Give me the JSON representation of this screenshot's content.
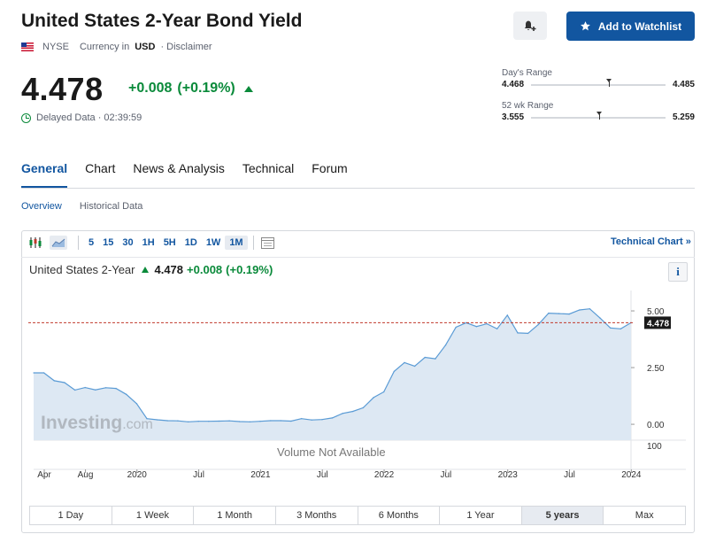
{
  "header": {
    "title": "United States 2-Year Bond Yield",
    "exchange": "NYSE",
    "currency_prefix": "Currency in",
    "currency": "USD",
    "disclaimer": "· Disclaimer",
    "watchlist_label": "Add to Watchlist"
  },
  "quote": {
    "price": "4.478",
    "change": "+0.008",
    "change_pct": "(+0.19%)",
    "delayed": "Delayed Data · 02:39:59",
    "up_color": "#0a8a3a"
  },
  "ranges": {
    "day": {
      "label": "Day's Range",
      "low": "4.468",
      "high": "4.485",
      "position": 0.56
    },
    "week52": {
      "label": "52 wk Range",
      "low": "3.555",
      "high": "5.259",
      "position": 0.49
    }
  },
  "tabs": [
    "General",
    "Chart",
    "News & Analysis",
    "Technical",
    "Forum"
  ],
  "active_tab": "General",
  "subtabs": [
    "Overview",
    "Historical Data"
  ],
  "toolbar": {
    "intervals": [
      "5",
      "15",
      "30",
      "1H",
      "5H",
      "1D",
      "1W",
      "1M"
    ],
    "active_interval": "1M",
    "technical_chart": "Technical Chart »"
  },
  "legend": {
    "name": "United States 2-Year",
    "price": "4.478",
    "change": "+0.008",
    "change_pct": "(+0.19%)",
    "info": "i"
  },
  "chart_data": {
    "type": "area",
    "x": [
      "2019-04",
      "2019-05",
      "2019-06",
      "2019-07",
      "2019-08",
      "2019-09",
      "2019-10",
      "2019-11",
      "2019-12",
      "2020-01",
      "2020-02",
      "2020-03",
      "2020-04",
      "2020-05",
      "2020-06",
      "2020-07",
      "2020-08",
      "2020-09",
      "2020-10",
      "2020-11",
      "2020-12",
      "2021-01",
      "2021-02",
      "2021-03",
      "2021-04",
      "2021-05",
      "2021-06",
      "2021-07",
      "2021-08",
      "2021-09",
      "2021-10",
      "2021-11",
      "2021-12",
      "2022-01",
      "2022-02",
      "2022-03",
      "2022-04",
      "2022-05",
      "2022-06",
      "2022-07",
      "2022-08",
      "2022-09",
      "2022-10",
      "2022-11",
      "2022-12",
      "2023-01",
      "2023-02",
      "2023-03",
      "2023-04",
      "2023-05",
      "2023-06",
      "2023-07",
      "2023-08",
      "2023-09",
      "2023-10",
      "2023-11",
      "2023-12",
      "2024-01",
      "2024-02"
    ],
    "values": [
      2.27,
      2.27,
      1.92,
      1.84,
      1.51,
      1.62,
      1.52,
      1.61,
      1.58,
      1.32,
      0.91,
      0.25,
      0.2,
      0.16,
      0.15,
      0.11,
      0.13,
      0.13,
      0.14,
      0.15,
      0.12,
      0.11,
      0.13,
      0.16,
      0.16,
      0.14,
      0.25,
      0.19,
      0.21,
      0.28,
      0.48,
      0.57,
      0.73,
      1.18,
      1.43,
      2.33,
      2.72,
      2.56,
      2.95,
      2.89,
      3.49,
      4.28,
      4.48,
      4.31,
      4.43,
      4.21,
      4.81,
      4.03,
      4.01,
      4.4,
      4.9,
      4.88,
      4.86,
      5.04,
      5.09,
      4.68,
      4.25,
      4.21,
      4.478
    ],
    "xticks": [
      "Apr",
      "Aug",
      "2020",
      "Jul",
      "2021",
      "Jul",
      "2022",
      "Jul",
      "2023",
      "Jul",
      "2024"
    ],
    "yticks": [
      "5.00",
      "2.50",
      "0.00"
    ],
    "volume_label": "Volume Not Available",
    "volume_tick": "100",
    "last_value_label": "4.478",
    "ylim": [
      -0.7,
      5.9
    ],
    "line_color": "#5a9bd5",
    "fill_color": "#dde8f3",
    "reference_line_color": "#c0392b",
    "watermark_main": "Investing",
    "watermark_suffix": ".com"
  },
  "periods": [
    "1 Day",
    "1 Week",
    "1 Month",
    "3 Months",
    "6 Months",
    "1 Year",
    "5 years",
    "Max"
  ],
  "active_period": "5 years"
}
